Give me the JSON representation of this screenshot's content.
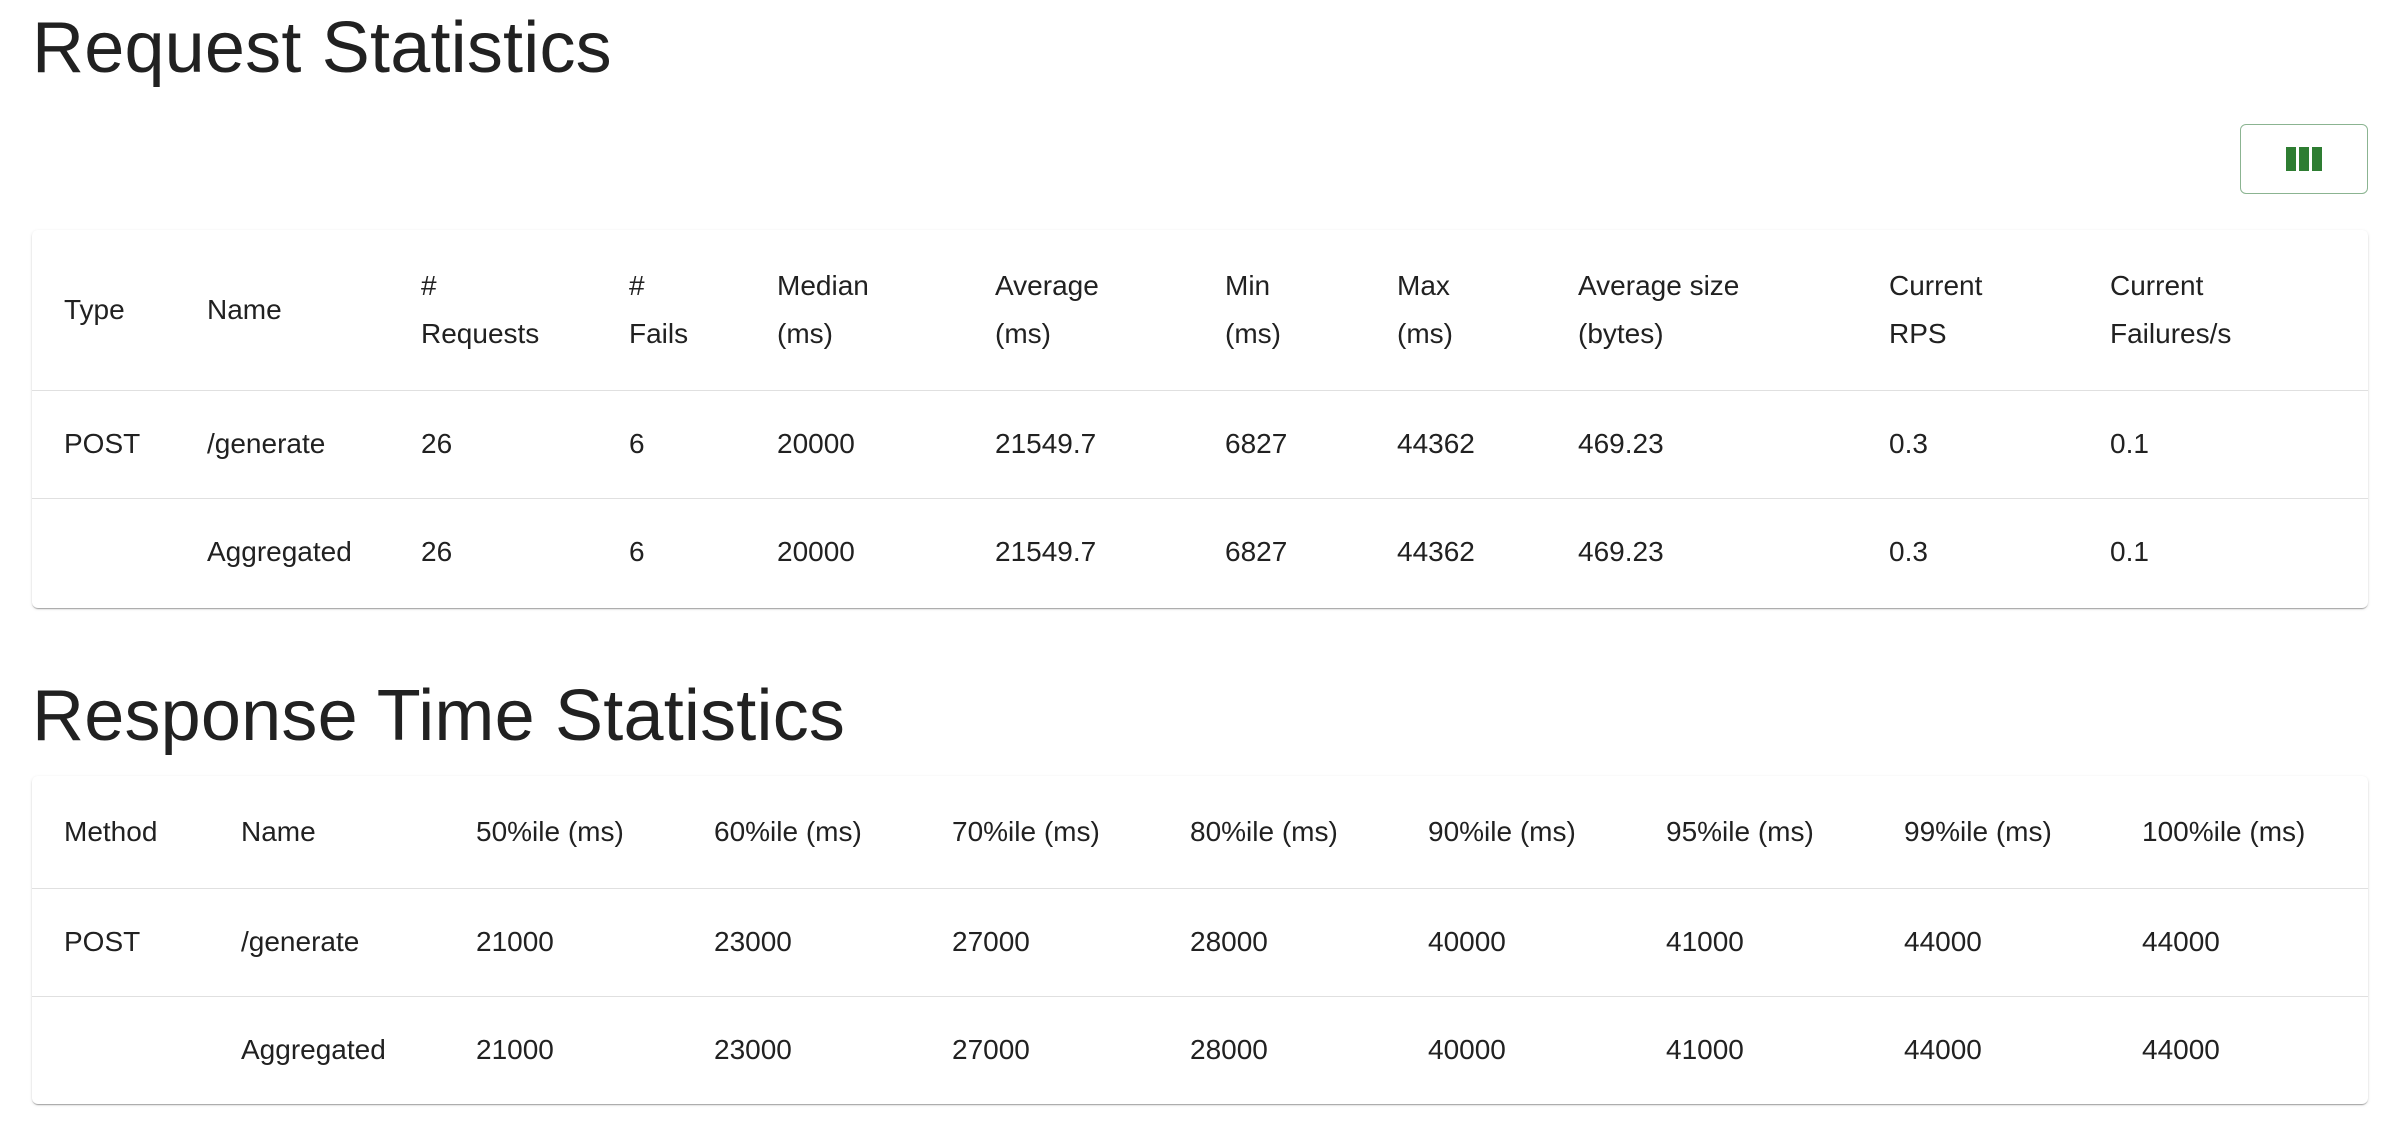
{
  "request_statistics": {
    "title": "Request Statistics",
    "columns_button_icon": "view-columns-icon",
    "accent_color": "#2e7d32",
    "headers": [
      {
        "line1": "Type",
        "line2": ""
      },
      {
        "line1": "Name",
        "line2": ""
      },
      {
        "line1": "#",
        "line2": "Requests"
      },
      {
        "line1": "#",
        "line2": "Fails"
      },
      {
        "line1": "Median",
        "line2": "(ms)"
      },
      {
        "line1": "Average",
        "line2": "(ms)"
      },
      {
        "line1": "Min",
        "line2": "(ms)"
      },
      {
        "line1": "Max",
        "line2": "(ms)"
      },
      {
        "line1": "Average size",
        "line2": "(bytes)"
      },
      {
        "line1": "Current",
        "line2": "RPS"
      },
      {
        "line1": "Current",
        "line2": "Failures/s"
      }
    ],
    "rows": [
      [
        "POST",
        "/generate",
        "26",
        "6",
        "20000",
        "21549.7",
        "6827",
        "44362",
        "469.23",
        "0.3",
        "0.1"
      ],
      [
        "",
        "Aggregated",
        "26",
        "6",
        "20000",
        "21549.7",
        "6827",
        "44362",
        "469.23",
        "0.3",
        "0.1"
      ]
    ]
  },
  "response_time_statistics": {
    "title": "Response Time Statistics",
    "headers": [
      "Method",
      "Name",
      "50%ile (ms)",
      "60%ile (ms)",
      "70%ile (ms)",
      "80%ile (ms)",
      "90%ile (ms)",
      "95%ile (ms)",
      "99%ile (ms)",
      "100%ile (ms)"
    ],
    "rows": [
      [
        "POST",
        "/generate",
        "21000",
        "23000",
        "27000",
        "28000",
        "40000",
        "41000",
        "44000",
        "44000"
      ],
      [
        "",
        "Aggregated",
        "21000",
        "23000",
        "27000",
        "28000",
        "40000",
        "41000",
        "44000",
        "44000"
      ]
    ]
  }
}
